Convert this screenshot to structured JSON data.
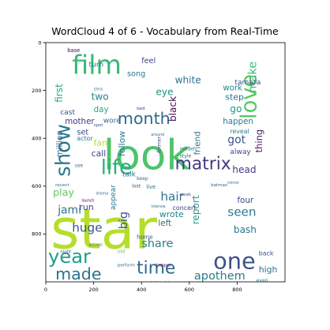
{
  "chart_data": {
    "type": "wordcloud",
    "title": "WordCloud 4 of 6 - Vocabulary from Real-Time",
    "xlabel": "",
    "ylabel": "",
    "xlim": [
      0,
      1000
    ],
    "ylim": [
      1000,
      0
    ],
    "x_ticks": [
      0,
      200,
      400,
      600,
      800
    ],
    "y_ticks": [
      0,
      200,
      400,
      600,
      800
    ],
    "grid": false,
    "colormap": "viridis",
    "words": [
      {
        "text": "star",
        "x": 20,
        "y": 860,
        "size": 230,
        "color": "#b5de2b"
      },
      {
        "text": "look",
        "x": 240,
        "y": 530,
        "size": 175,
        "color": "#4ec36b"
      },
      {
        "text": "film",
        "x": 110,
        "y": 130,
        "size": 110,
        "color": "#37b878"
      },
      {
        "text": "month",
        "x": 300,
        "y": 340,
        "size": 68,
        "color": "#31688e"
      },
      {
        "text": "matrix",
        "x": 540,
        "y": 530,
        "size": 72,
        "color": "#443983"
      },
      {
        "text": "love",
        "x": 880,
        "y": 320,
        "size": 90,
        "color": "#5ac864",
        "rotate": -90
      },
      {
        "text": "show",
        "x": 100,
        "y": 560,
        "size": 85,
        "color": "#2a788e",
        "rotate": -90
      },
      {
        "text": "life",
        "x": 230,
        "y": 550,
        "size": 85,
        "color": "#29af7f"
      },
      {
        "text": "year",
        "x": 10,
        "y": 920,
        "size": 80,
        "color": "#1f9e89"
      },
      {
        "text": "one",
        "x": 700,
        "y": 945,
        "size": 95,
        "color": "#3b528b"
      },
      {
        "text": "made",
        "x": 40,
        "y": 990,
        "size": 68,
        "color": "#2c728e"
      },
      {
        "text": "time",
        "x": 380,
        "y": 965,
        "size": 72,
        "color": "#31688e"
      },
      {
        "text": "apothem",
        "x": 620,
        "y": 990,
        "size": 48,
        "color": "#287d8e"
      },
      {
        "text": "white",
        "x": 540,
        "y": 170,
        "size": 40,
        "color": "#2c728e"
      },
      {
        "text": "song",
        "x": 340,
        "y": 140,
        "size": 32,
        "color": "#2a788e"
      },
      {
        "text": "eye",
        "x": 460,
        "y": 220,
        "size": 40,
        "color": "#21918c"
      },
      {
        "text": "black",
        "x": 545,
        "y": 330,
        "size": 40,
        "color": "#440154",
        "rotate": -90
      },
      {
        "text": "work",
        "x": 740,
        "y": 200,
        "size": 34,
        "color": "#228d8d"
      },
      {
        "text": "step",
        "x": 750,
        "y": 240,
        "size": 36,
        "color": "#2c728e"
      },
      {
        "text": "go",
        "x": 770,
        "y": 290,
        "size": 40,
        "color": "#1e9b8a"
      },
      {
        "text": "make",
        "x": 880,
        "y": 210,
        "size": 48,
        "color": "#3aba76",
        "rotate": -90
      },
      {
        "text": "thing",
        "x": 905,
        "y": 460,
        "size": 38,
        "color": "#471063",
        "rotate": -90
      },
      {
        "text": "two",
        "x": 190,
        "y": 240,
        "size": 40,
        "color": "#25848e"
      },
      {
        "text": "fan",
        "x": 200,
        "y": 430,
        "size": 36,
        "color": "#b5de2b"
      },
      {
        "text": "mother",
        "x": 80,
        "y": 340,
        "size": 34,
        "color": "#443983"
      },
      {
        "text": "first",
        "x": 70,
        "y": 250,
        "size": 40,
        "color": "#22a884",
        "rotate": -90
      },
      {
        "text": "set",
        "x": 130,
        "y": 385,
        "size": 32,
        "color": "#3e4989"
      },
      {
        "text": "actor",
        "x": 130,
        "y": 410,
        "size": 26,
        "color": "#2a788e"
      },
      {
        "text": "million",
        "x": 70,
        "y": 480,
        "size": 34,
        "color": "#31688e",
        "rotate": -90
      },
      {
        "text": "call",
        "x": 190,
        "y": 475,
        "size": 36,
        "color": "#414487"
      },
      {
        "text": "follow",
        "x": 330,
        "y": 475,
        "size": 36,
        "color": "#2a788e",
        "rotate": -90
      },
      {
        "text": "hair",
        "x": 480,
        "y": 660,
        "size": 50,
        "color": "#2c728e"
      },
      {
        "text": "happen",
        "x": 740,
        "y": 340,
        "size": 34,
        "color": "#277f8e"
      },
      {
        "text": "got",
        "x": 760,
        "y": 420,
        "size": 46,
        "color": "#3b528b"
      },
      {
        "text": "friend",
        "x": 645,
        "y": 470,
        "size": 34,
        "color": "#2a788e",
        "rotate": -90
      },
      {
        "text": "reveal",
        "x": 770,
        "y": 380,
        "size": 26,
        "color": "#26828e"
      },
      {
        "text": "alway",
        "x": 770,
        "y": 465,
        "size": 30,
        "color": "#3e4989"
      },
      {
        "text": "head",
        "x": 780,
        "y": 545,
        "size": 40,
        "color": "#443983"
      },
      {
        "text": "four",
        "x": 800,
        "y": 670,
        "size": 34,
        "color": "#3e4989"
      },
      {
        "text": "seen",
        "x": 760,
        "y": 725,
        "size": 50,
        "color": "#287d8e"
      },
      {
        "text": "report",
        "x": 640,
        "y": 760,
        "size": 40,
        "color": "#1f9e89",
        "rotate": -90
      },
      {
        "text": "play",
        "x": 30,
        "y": 640,
        "size": 42,
        "color": "#5ec962"
      },
      {
        "text": "jami",
        "x": 50,
        "y": 715,
        "size": 46,
        "color": "#2c728e"
      },
      {
        "text": "run",
        "x": 140,
        "y": 700,
        "size": 36,
        "color": "#443983"
      },
      {
        "text": "huge",
        "x": 110,
        "y": 790,
        "size": 50,
        "color": "#3b528b"
      },
      {
        "text": "appear",
        "x": 290,
        "y": 700,
        "size": 30,
        "color": "#2a788e",
        "rotate": -90
      },
      {
        "text": "big",
        "x": 340,
        "y": 780,
        "size": 48,
        "color": "#3b528b",
        "rotate": -90
      },
      {
        "text": "wrote",
        "x": 475,
        "y": 730,
        "size": 36,
        "color": "#25848e"
      },
      {
        "text": "left",
        "x": 470,
        "y": 765,
        "size": 34,
        "color": "#31688e"
      },
      {
        "text": "share",
        "x": 400,
        "y": 855,
        "size": 48,
        "color": "#277f8e"
      },
      {
        "text": "bash",
        "x": 785,
        "y": 795,
        "size": 40,
        "color": "#2a788e"
      },
      {
        "text": "high",
        "x": 890,
        "y": 960,
        "size": 36,
        "color": "#2c728e"
      },
      {
        "text": "back",
        "x": 890,
        "y": 890,
        "size": 26,
        "color": "#3b528b"
      },
      {
        "text": "turn",
        "x": 180,
        "y": 100,
        "size": 30,
        "color": "#2a788e"
      },
      {
        "text": "feel",
        "x": 400,
        "y": 85,
        "size": 32,
        "color": "#414487"
      },
      {
        "text": "tamara",
        "x": 790,
        "y": 175,
        "size": 30,
        "color": "#3b528b"
      },
      {
        "text": "cast",
        "x": 60,
        "y": 300,
        "size": 30,
        "color": "#3b528b"
      },
      {
        "text": "day",
        "x": 200,
        "y": 290,
        "size": 34,
        "color": "#22a884"
      },
      {
        "text": "wore",
        "x": 240,
        "y": 335,
        "size": 30,
        "color": "#31688e"
      },
      {
        "text": "talk",
        "x": 320,
        "y": 560,
        "size": 30,
        "color": "#2a788e"
      },
      {
        "text": "concert",
        "x": 530,
        "y": 700,
        "size": 26,
        "color": "#443983"
      },
      {
        "text": "live",
        "x": 420,
        "y": 610,
        "size": 22,
        "color": "#2c728e"
      },
      {
        "text": "home",
        "x": 380,
        "y": 820,
        "size": 24,
        "color": "#3b528b"
      },
      {
        "text": "old",
        "x": 300,
        "y": 880,
        "size": 20,
        "color": "#5ec962"
      },
      {
        "text": "model",
        "x": 560,
        "y": 450,
        "size": 20,
        "color": "#2c728e"
      },
      {
        "text": "style",
        "x": 560,
        "y": 480,
        "size": 20,
        "color": "#31688e"
      },
      {
        "text": "former",
        "x": 480,
        "y": 460,
        "size": 20,
        "color": "#3e4989",
        "rotate": -90
      },
      {
        "text": "even",
        "x": 880,
        "y": 1000,
        "size": 20,
        "color": "#2a788e"
      },
      {
        "text": "base",
        "x": 90,
        "y": 40,
        "size": 22,
        "color": "#440154"
      },
      {
        "text": "relationship",
        "x": 420,
        "y": 1010,
        "size": 18,
        "color": "#414487"
      },
      {
        "text": "secret",
        "x": 590,
        "y": 1010,
        "size": 18,
        "color": "#2a788e"
      },
      {
        "text": "perform",
        "x": 300,
        "y": 935,
        "size": 18,
        "color": "#31688e"
      },
      {
        "text": "drama",
        "x": 210,
        "y": 635,
        "size": 16,
        "color": "#2c728e"
      },
      {
        "text": "lost",
        "x": 360,
        "y": 605,
        "size": 20,
        "color": "#3b528b"
      },
      {
        "text": "week",
        "x": 560,
        "y": 640,
        "size": 18,
        "color": "#3e4989"
      },
      {
        "text": "batman",
        "x": 690,
        "y": 600,
        "size": 18,
        "color": "#31688e"
      },
      {
        "text": "mirror",
        "x": 760,
        "y": 590,
        "size": 16,
        "color": "#2a788e"
      },
      {
        "text": "intervie",
        "x": 440,
        "y": 690,
        "size": 16,
        "color": "#2c728e"
      },
      {
        "text": "spot",
        "x": 200,
        "y": 350,
        "size": 18,
        "color": "#3b528b"
      },
      {
        "text": "use",
        "x": 120,
        "y": 520,
        "size": 20,
        "color": "#31688e"
      },
      {
        "text": "recent",
        "x": 40,
        "y": 600,
        "size": 18,
        "color": "#2a788e"
      },
      {
        "text": "night",
        "x": 60,
        "y": 880,
        "size": 18,
        "color": "#3b528b"
      },
      {
        "text": "launch",
        "x": 150,
        "y": 665,
        "size": 16,
        "color": "#440154"
      },
      {
        "text": "actress",
        "x": 180,
        "y": 850,
        "size": 16,
        "color": "#2c728e"
      },
      {
        "text": "hopper",
        "x": 460,
        "y": 935,
        "size": 18,
        "color": "#440154"
      },
      {
        "text": "chris",
        "x": 200,
        "y": 200,
        "size": 16,
        "color": "#31688e"
      },
      {
        "text": "around",
        "x": 440,
        "y": 390,
        "size": 16,
        "color": "#2a788e"
      },
      {
        "text": "bed",
        "x": 380,
        "y": 280,
        "size": 18,
        "color": "#3e4989"
      },
      {
        "text": "keep",
        "x": 380,
        "y": 575,
        "size": 20,
        "color": "#2c728e"
      }
    ]
  }
}
